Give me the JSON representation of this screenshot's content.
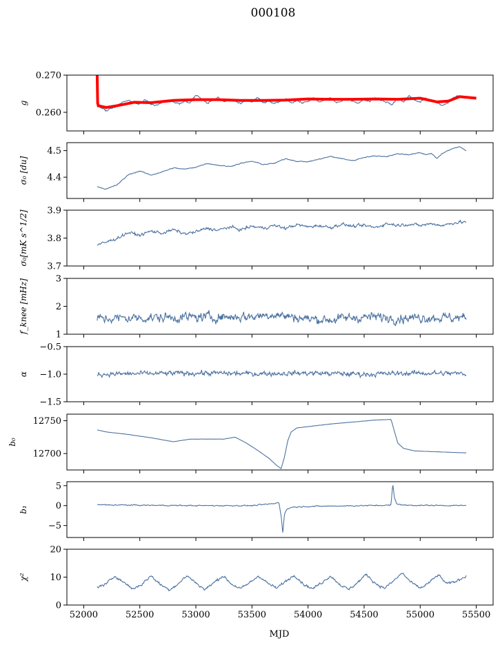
{
  "figure": {
    "title": "000108",
    "xlabel": "MJD",
    "xlim": [
      51850,
      55650
    ],
    "xticks": [
      52000,
      52500,
      53000,
      53500,
      54000,
      54500,
      55000,
      55500
    ],
    "xticklabels": [
      "52000",
      "52500",
      "53000",
      "53500",
      "54000",
      "54500",
      "55000",
      "55500"
    ]
  },
  "chart_data": [
    {
      "type": "line",
      "ylabel": "g",
      "ylim": [
        0.255,
        0.27
      ],
      "yticks": [
        0.26,
        0.27
      ],
      "yticklabels": [
        "0.260",
        "0.270"
      ],
      "line_color": "#4c72a0",
      "fit_color": "#ff0000",
      "knots": [
        [
          52120,
          0.2615
        ],
        [
          52160,
          0.2612
        ],
        [
          52200,
          0.2603
        ],
        [
          52250,
          0.261
        ],
        [
          52300,
          0.2618
        ],
        [
          52350,
          0.2628
        ],
        [
          52400,
          0.2632
        ],
        [
          52450,
          0.2625
        ],
        [
          52500,
          0.2622
        ],
        [
          52550,
          0.2635
        ],
        [
          52600,
          0.2623
        ],
        [
          52650,
          0.2618
        ],
        [
          52700,
          0.2627
        ],
        [
          52750,
          0.2634
        ],
        [
          52800,
          0.2629
        ],
        [
          52850,
          0.2623
        ],
        [
          52900,
          0.263
        ],
        [
          52950,
          0.2625
        ],
        [
          53000,
          0.2647
        ],
        [
          53050,
          0.2638
        ],
        [
          53100,
          0.2625
        ],
        [
          53150,
          0.2632
        ],
        [
          53200,
          0.264
        ],
        [
          53250,
          0.2628
        ],
        [
          53300,
          0.2635
        ],
        [
          53350,
          0.263
        ],
        [
          53400,
          0.2622
        ],
        [
          53450,
          0.2633
        ],
        [
          53500,
          0.2628
        ],
        [
          53550,
          0.264
        ],
        [
          53600,
          0.2625
        ],
        [
          53650,
          0.263
        ],
        [
          53700,
          0.2623
        ],
        [
          53750,
          0.2628
        ],
        [
          53800,
          0.2636
        ],
        [
          53850,
          0.2626
        ],
        [
          53900,
          0.2632
        ],
        [
          53950,
          0.2625
        ],
        [
          54000,
          0.263
        ],
        [
          54050,
          0.2638
        ],
        [
          54100,
          0.2627
        ],
        [
          54150,
          0.2633
        ],
        [
          54200,
          0.264
        ],
        [
          54250,
          0.2626
        ],
        [
          54300,
          0.263
        ],
        [
          54350,
          0.2637
        ],
        [
          54400,
          0.2631
        ],
        [
          54450,
          0.2625
        ],
        [
          54500,
          0.2634
        ],
        [
          54550,
          0.263
        ],
        [
          54600,
          0.264
        ],
        [
          54650,
          0.2633
        ],
        [
          54700,
          0.2628
        ],
        [
          54750,
          0.262
        ],
        [
          54800,
          0.2638
        ],
        [
          54850,
          0.2627
        ],
        [
          54900,
          0.2645
        ],
        [
          54950,
          0.2632
        ],
        [
          55000,
          0.2628
        ],
        [
          55050,
          0.2638
        ],
        [
          55100,
          0.263
        ],
        [
          55150,
          0.2625
        ],
        [
          55200,
          0.2618
        ],
        [
          55250,
          0.2627
        ],
        [
          55300,
          0.264
        ],
        [
          55350,
          0.2645
        ],
        [
          55410,
          0.2641
        ]
      ],
      "noise": 0.0004,
      "fit": [
        [
          52120,
          0.27
        ],
        [
          52124,
          0.2625
        ],
        [
          52130,
          0.2618
        ],
        [
          52200,
          0.2613
        ],
        [
          52300,
          0.2618
        ],
        [
          52450,
          0.2627
        ],
        [
          52600,
          0.2626
        ],
        [
          52800,
          0.2632
        ],
        [
          53000,
          0.2634
        ],
        [
          53200,
          0.2634
        ],
        [
          53400,
          0.2632
        ],
        [
          53600,
          0.2632
        ],
        [
          53800,
          0.2633
        ],
        [
          54000,
          0.2636
        ],
        [
          54200,
          0.2635
        ],
        [
          54400,
          0.2635
        ],
        [
          54600,
          0.2636
        ],
        [
          54800,
          0.2635
        ],
        [
          55000,
          0.2638
        ],
        [
          55150,
          0.2628
        ],
        [
          55250,
          0.263
        ],
        [
          55350,
          0.2642
        ],
        [
          55500,
          0.2638
        ]
      ]
    },
    {
      "type": "line",
      "ylabel": "σ₀ [du]",
      "ylim": [
        4.32,
        4.53
      ],
      "yticks": [
        4.4,
        4.5
      ],
      "yticklabels": [
        "4.4",
        "4.5"
      ],
      "line_color": "#4c72a0",
      "knots": [
        [
          52120,
          4.365
        ],
        [
          52200,
          4.355
        ],
        [
          52300,
          4.372
        ],
        [
          52400,
          4.41
        ],
        [
          52500,
          4.423
        ],
        [
          52600,
          4.408
        ],
        [
          52700,
          4.42
        ],
        [
          52800,
          4.435
        ],
        [
          52900,
          4.43
        ],
        [
          53000,
          4.438
        ],
        [
          53100,
          4.452
        ],
        [
          53200,
          4.445
        ],
        [
          53300,
          4.44
        ],
        [
          53400,
          4.452
        ],
        [
          53500,
          4.46
        ],
        [
          53600,
          4.448
        ],
        [
          53700,
          4.452
        ],
        [
          53800,
          4.47
        ],
        [
          53900,
          4.46
        ],
        [
          54000,
          4.458
        ],
        [
          54100,
          4.468
        ],
        [
          54200,
          4.478
        ],
        [
          54300,
          4.47
        ],
        [
          54400,
          4.462
        ],
        [
          54500,
          4.475
        ],
        [
          54600,
          4.48
        ],
        [
          54700,
          4.478
        ],
        [
          54800,
          4.488
        ],
        [
          54900,
          4.485
        ],
        [
          55000,
          4.492
        ],
        [
          55050,
          4.485
        ],
        [
          55100,
          4.49
        ],
        [
          55150,
          4.47
        ],
        [
          55200,
          4.49
        ],
        [
          55300,
          4.51
        ],
        [
          55350,
          4.515
        ],
        [
          55410,
          4.5
        ]
      ],
      "noise": 0.003
    },
    {
      "type": "line",
      "ylabel": "σ₀[mK s^1/2]",
      "ylim": [
        3.7,
        3.9
      ],
      "yticks": [
        3.7,
        3.8,
        3.9
      ],
      "yticklabels": [
        "3.7",
        "3.8",
        "3.9"
      ],
      "line_color": "#4c72a0",
      "knots": [
        [
          52120,
          3.775
        ],
        [
          52200,
          3.785
        ],
        [
          52300,
          3.8
        ],
        [
          52400,
          3.82
        ],
        [
          52500,
          3.81
        ],
        [
          52600,
          3.825
        ],
        [
          52700,
          3.818
        ],
        [
          52800,
          3.83
        ],
        [
          52900,
          3.815
        ],
        [
          53000,
          3.822
        ],
        [
          53100,
          3.835
        ],
        [
          53200,
          3.828
        ],
        [
          53300,
          3.84
        ],
        [
          53400,
          3.83
        ],
        [
          53500,
          3.842
        ],
        [
          53600,
          3.836
        ],
        [
          53700,
          3.845
        ],
        [
          53800,
          3.835
        ],
        [
          53900,
          3.848
        ],
        [
          54000,
          3.84
        ],
        [
          54100,
          3.845
        ],
        [
          54200,
          3.838
        ],
        [
          54300,
          3.85
        ],
        [
          54400,
          3.842
        ],
        [
          54500,
          3.845
        ],
        [
          54600,
          3.838
        ],
        [
          54700,
          3.852
        ],
        [
          54800,
          3.846
        ],
        [
          54900,
          3.85
        ],
        [
          55000,
          3.845
        ],
        [
          55100,
          3.852
        ],
        [
          55200,
          3.845
        ],
        [
          55300,
          3.855
        ],
        [
          55410,
          3.858
        ]
      ],
      "noise": 0.01
    },
    {
      "type": "line",
      "ylabel": "f_knee [mHz]",
      "ylim": [
        1.0,
        3.0
      ],
      "yticks": [
        1,
        2,
        3
      ],
      "yticklabels": [
        "1",
        "2",
        "3"
      ],
      "line_color": "#4c72a0",
      "knots": [
        [
          52120,
          1.55
        ],
        [
          52400,
          1.58
        ],
        [
          52800,
          1.6
        ],
        [
          53200,
          1.62
        ],
        [
          53500,
          1.63
        ],
        [
          53700,
          1.72
        ],
        [
          53800,
          1.65
        ],
        [
          54000,
          1.55
        ],
        [
          54200,
          1.52
        ],
        [
          54400,
          1.6
        ],
        [
          54600,
          1.62
        ],
        [
          54800,
          1.58
        ],
        [
          55000,
          1.6
        ],
        [
          55200,
          1.6
        ],
        [
          55410,
          1.58
        ]
      ],
      "noise": 0.32
    },
    {
      "type": "line",
      "ylabel": "α",
      "ylim": [
        -1.5,
        -0.5
      ],
      "yticks": [
        -1.5,
        -1.0,
        -0.5
      ],
      "yticklabels": [
        "−1.5",
        "−1.0",
        "−0.5"
      ],
      "line_color": "#4c72a0",
      "knots": [
        [
          52120,
          -1.0
        ],
        [
          52600,
          -0.99
        ],
        [
          53000,
          -0.98
        ],
        [
          53500,
          -0.99
        ],
        [
          54000,
          -0.98
        ],
        [
          54500,
          -1.0
        ],
        [
          55000,
          -0.98
        ],
        [
          55410,
          -0.99
        ]
      ],
      "noise": 0.085
    },
    {
      "type": "line",
      "ylabel": "b₀",
      "ylim": [
        12675,
        12760
      ],
      "yticks": [
        12700,
        12750
      ],
      "yticklabels": [
        "12700",
        "12750"
      ],
      "line_color": "#4c72a0",
      "knots": [
        [
          52120,
          12736
        ],
        [
          52200,
          12733
        ],
        [
          52400,
          12729
        ],
        [
          52600,
          12724
        ],
        [
          52800,
          12718
        ],
        [
          52950,
          12722
        ],
        [
          53100,
          12722
        ],
        [
          53250,
          12722
        ],
        [
          53350,
          12725
        ],
        [
          53450,
          12716
        ],
        [
          53550,
          12705
        ],
        [
          53650,
          12693
        ],
        [
          53720,
          12682
        ],
        [
          53760,
          12677
        ],
        [
          53790,
          12695
        ],
        [
          53820,
          12720
        ],
        [
          53850,
          12733
        ],
        [
          53900,
          12739
        ],
        [
          54000,
          12741
        ],
        [
          54200,
          12745
        ],
        [
          54400,
          12748
        ],
        [
          54600,
          12751
        ],
        [
          54740,
          12752
        ],
        [
          54760,
          12740
        ],
        [
          54800,
          12716
        ],
        [
          54850,
          12708
        ],
        [
          54950,
          12704
        ],
        [
          55100,
          12703
        ],
        [
          55250,
          12702
        ],
        [
          55410,
          12701
        ]
      ],
      "noise": 0.25
    },
    {
      "type": "line",
      "ylabel": "b₁",
      "ylim": [
        -8,
        6
      ],
      "yticks": [
        -5,
        0,
        5
      ],
      "yticklabels": [
        "−5",
        "0",
        "5"
      ],
      "line_color": "#4c72a0",
      "knots": [
        [
          52120,
          0.2
        ],
        [
          52500,
          0.1
        ],
        [
          53000,
          0.0
        ],
        [
          53500,
          0.0
        ],
        [
          53700,
          0.5
        ],
        [
          53740,
          0.8
        ],
        [
          53760,
          -2.5
        ],
        [
          53775,
          -6.8
        ],
        [
          53790,
          -2.0
        ],
        [
          53810,
          -1.0
        ],
        [
          53850,
          -0.4
        ],
        [
          54000,
          -0.2
        ],
        [
          54500,
          0.0
        ],
        [
          54740,
          0.1
        ],
        [
          54755,
          5.5
        ],
        [
          54770,
          2.0
        ],
        [
          54790,
          0.5
        ],
        [
          54850,
          0.1
        ],
        [
          55410,
          0.0
        ]
      ],
      "noise": 0.25
    },
    {
      "type": "line",
      "ylabel": "χ²",
      "ylim": [
        0,
        20
      ],
      "yticks": [
        0,
        10,
        20
      ],
      "yticklabels": [
        "0",
        "10",
        "20"
      ],
      "line_color": "#4c72a0",
      "knots": [
        [
          52120,
          6.5
        ],
        [
          52200,
          7.5
        ],
        [
          52280,
          10.5
        ],
        [
          52360,
          8.0
        ],
        [
          52440,
          5.8
        ],
        [
          52520,
          7.5
        ],
        [
          52600,
          10.5
        ],
        [
          52680,
          7.5
        ],
        [
          52760,
          5.5
        ],
        [
          52840,
          7.5
        ],
        [
          52920,
          10.5
        ],
        [
          53000,
          8.0
        ],
        [
          53080,
          5.5
        ],
        [
          53160,
          8.0
        ],
        [
          53240,
          10.5
        ],
        [
          53320,
          7.5
        ],
        [
          53400,
          5.8
        ],
        [
          53480,
          8.0
        ],
        [
          53560,
          10.5
        ],
        [
          53640,
          7.8
        ],
        [
          53720,
          6.0
        ],
        [
          53800,
          8.5
        ],
        [
          53880,
          10.8
        ],
        [
          53960,
          7.5
        ],
        [
          54040,
          5.8
        ],
        [
          54120,
          8.0
        ],
        [
          54200,
          10.5
        ],
        [
          54280,
          7.5
        ],
        [
          54360,
          5.5
        ],
        [
          54440,
          8.0
        ],
        [
          54520,
          11.0
        ],
        [
          54600,
          7.8
        ],
        [
          54680,
          6.0
        ],
        [
          54760,
          8.5
        ],
        [
          54840,
          11.5
        ],
        [
          54920,
          8.0
        ],
        [
          55000,
          6.0
        ],
        [
          55080,
          8.0
        ],
        [
          55160,
          10.8
        ],
        [
          55240,
          7.5
        ],
        [
          55320,
          8.5
        ],
        [
          55410,
          10.5
        ]
      ],
      "noise": 0.9
    }
  ]
}
